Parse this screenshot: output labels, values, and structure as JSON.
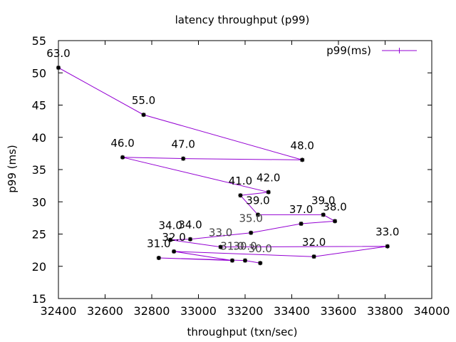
{
  "chart_data": {
    "type": "line",
    "title": "latency throughput (p99)",
    "xlabel": "throughput (txn/sec)",
    "ylabel": "p99 (ms)",
    "xlim": [
      32400,
      34000
    ],
    "ylim": [
      15,
      55
    ],
    "x_ticks": [
      32400,
      32600,
      32800,
      33000,
      33200,
      33400,
      33600,
      33800,
      34000
    ],
    "y_ticks": [
      15,
      20,
      25,
      30,
      35,
      40,
      45,
      50,
      55
    ],
    "legend_position": "top-right",
    "series": [
      {
        "name": "p99(ms)",
        "color": "#9400d3",
        "points": [
          {
            "x": 32400,
            "y": 50.8,
            "label": "63.0"
          },
          {
            "x": 32765,
            "y": 43.5,
            "label": "55.0"
          },
          {
            "x": 33445,
            "y": 36.5,
            "label": "48.0"
          },
          {
            "x": 32935,
            "y": 36.7,
            "label": "47.0"
          },
          {
            "x": 32675,
            "y": 36.9,
            "label": "46.0"
          },
          {
            "x": 33300,
            "y": 31.5,
            "label": "42.0"
          },
          {
            "x": 33180,
            "y": 31.0,
            "label": "41.0"
          },
          {
            "x": 33255,
            "y": 28.0,
            "label": "39.0"
          },
          {
            "x": 33535,
            "y": 28.0,
            "label": "39.0"
          },
          {
            "x": 33585,
            "y": 27.0,
            "label": "38.0"
          },
          {
            "x": 33440,
            "y": 26.6,
            "label": "37.0"
          },
          {
            "x": 33225,
            "y": 25.2,
            "label": "35.0"
          },
          {
            "x": 32965,
            "y": 24.2,
            "label": "34.0"
          },
          {
            "x": 32880,
            "y": 24.1,
            "label": "34.0"
          },
          {
            "x": 33095,
            "y": 23.0,
            "label": "33.0"
          },
          {
            "x": 33810,
            "y": 23.1,
            "label": "33.0"
          },
          {
            "x": 33495,
            "y": 21.5,
            "label": "32.0"
          },
          {
            "x": 32895,
            "y": 22.3,
            "label": "32.0"
          },
          {
            "x": 33145,
            "y": 20.9,
            "label": "31.0"
          },
          {
            "x": 32830,
            "y": 21.3,
            "label": "31.0"
          },
          {
            "x": 33200,
            "y": 20.9,
            "label": "30.0"
          },
          {
            "x": 33265,
            "y": 20.5,
            "label": "30.0"
          }
        ]
      }
    ]
  }
}
